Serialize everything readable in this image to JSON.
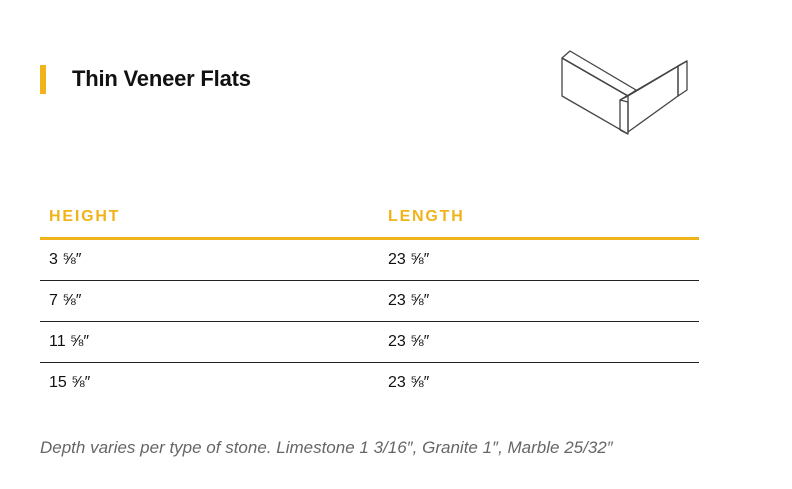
{
  "header": {
    "title": "Thin Veneer Flats",
    "accent_color": "#f0b31a",
    "icon": "corner-veneer-icon"
  },
  "table": {
    "columns": [
      "HEIGHT",
      "LENGTH"
    ],
    "rows": [
      [
        "3 ⅝″",
        "23 ⅝″"
      ],
      [
        "7 ⅝″",
        "23 ⅝″"
      ],
      [
        "11 ⅝″",
        "23 ⅝″"
      ],
      [
        "15 ⅝″",
        "23 ⅝″"
      ]
    ]
  },
  "footnote": "Depth varies per type of stone. Limestone 1 3/16″, Granite 1″, Marble 25/32″"
}
